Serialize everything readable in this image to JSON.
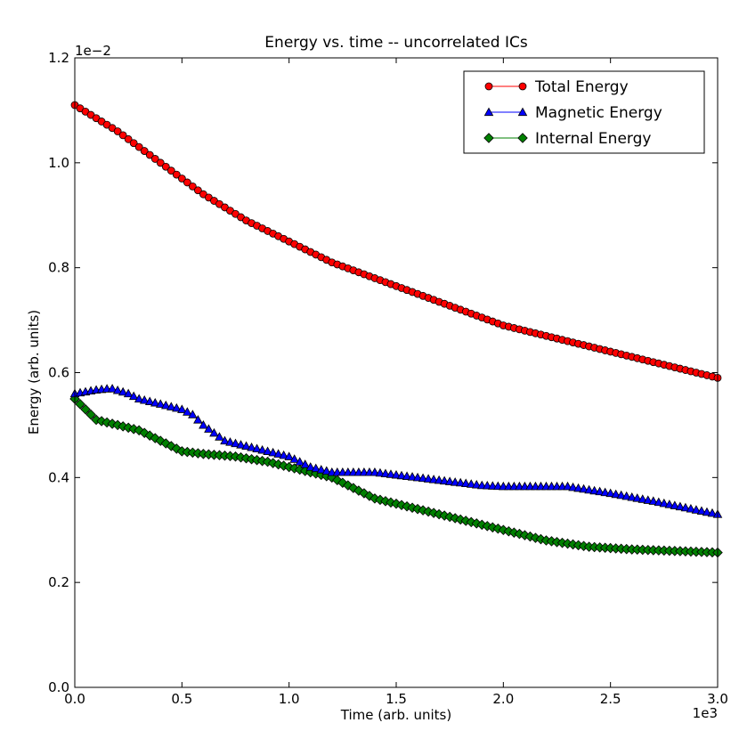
{
  "chart_data": {
    "type": "line",
    "title": "Energy vs. time -- uncorrelated ICs",
    "xlabel": "Time (arb. units)",
    "ylabel": "Energy (arb. units)",
    "x_offset_text": "1e3",
    "y_offset_text": "1e−2",
    "xlim": [
      0,
      3.0
    ],
    "ylim": [
      0,
      1.2
    ],
    "xticks": [
      0,
      0.5,
      1.0,
      1.5,
      2.0,
      2.5,
      3.0
    ],
    "xtick_labels": [
      "0.0",
      "0.5",
      "1.0",
      "1.5",
      "2.0",
      "2.5",
      "3.0"
    ],
    "yticks": [
      0,
      0.2,
      0.4,
      0.6,
      0.8,
      1.0,
      1.2
    ],
    "ytick_labels": [
      "0.0",
      "0.2",
      "0.4",
      "0.6",
      "0.8",
      "1.0",
      "1.2"
    ],
    "grid": false,
    "legend_position": "top-right",
    "num_points": 121,
    "series": [
      {
        "name": "Total Energy",
        "color": "#ff0000",
        "marker": "circle",
        "anchors_x": [
          0,
          0.2,
          0.4,
          0.5,
          0.6,
          0.8,
          1.0,
          1.2,
          1.4,
          1.6,
          1.8,
          2.0,
          2.2,
          2.4,
          2.6,
          2.8,
          3.0
        ],
        "anchors_y": [
          1.11,
          1.06,
          1.0,
          0.97,
          0.94,
          0.89,
          0.85,
          0.81,
          0.78,
          0.75,
          0.72,
          0.69,
          0.67,
          0.65,
          0.63,
          0.61,
          0.59
        ]
      },
      {
        "name": "Magnetic Energy",
        "color": "#0000ff",
        "marker": "triangle",
        "anchors_x": [
          0,
          0.1,
          0.17,
          0.25,
          0.3,
          0.4,
          0.5,
          0.55,
          0.6,
          0.7,
          0.8,
          0.9,
          1.0,
          1.1,
          1.2,
          1.4,
          1.6,
          1.8,
          1.9,
          2.0,
          2.2,
          2.3,
          2.5,
          2.7,
          3.0
        ],
        "anchors_y": [
          0.56,
          0.567,
          0.57,
          0.56,
          0.55,
          0.54,
          0.53,
          0.52,
          0.5,
          0.47,
          0.46,
          0.45,
          0.44,
          0.42,
          0.41,
          0.41,
          0.4,
          0.39,
          0.385,
          0.383,
          0.383,
          0.383,
          0.37,
          0.355,
          0.33
        ]
      },
      {
        "name": "Internal Energy",
        "color": "#008000",
        "marker": "diamond",
        "anchors_x": [
          0,
          0.1,
          0.2,
          0.3,
          0.4,
          0.5,
          0.6,
          0.75,
          0.9,
          1.0,
          1.1,
          1.2,
          1.4,
          1.6,
          1.8,
          2.0,
          2.2,
          2.4,
          2.6,
          2.8,
          3.0
        ],
        "anchors_y": [
          0.55,
          0.51,
          0.5,
          0.49,
          0.47,
          0.45,
          0.445,
          0.44,
          0.43,
          0.42,
          0.41,
          0.4,
          0.36,
          0.34,
          0.32,
          0.3,
          0.28,
          0.268,
          0.263,
          0.26,
          0.257
        ]
      }
    ]
  }
}
